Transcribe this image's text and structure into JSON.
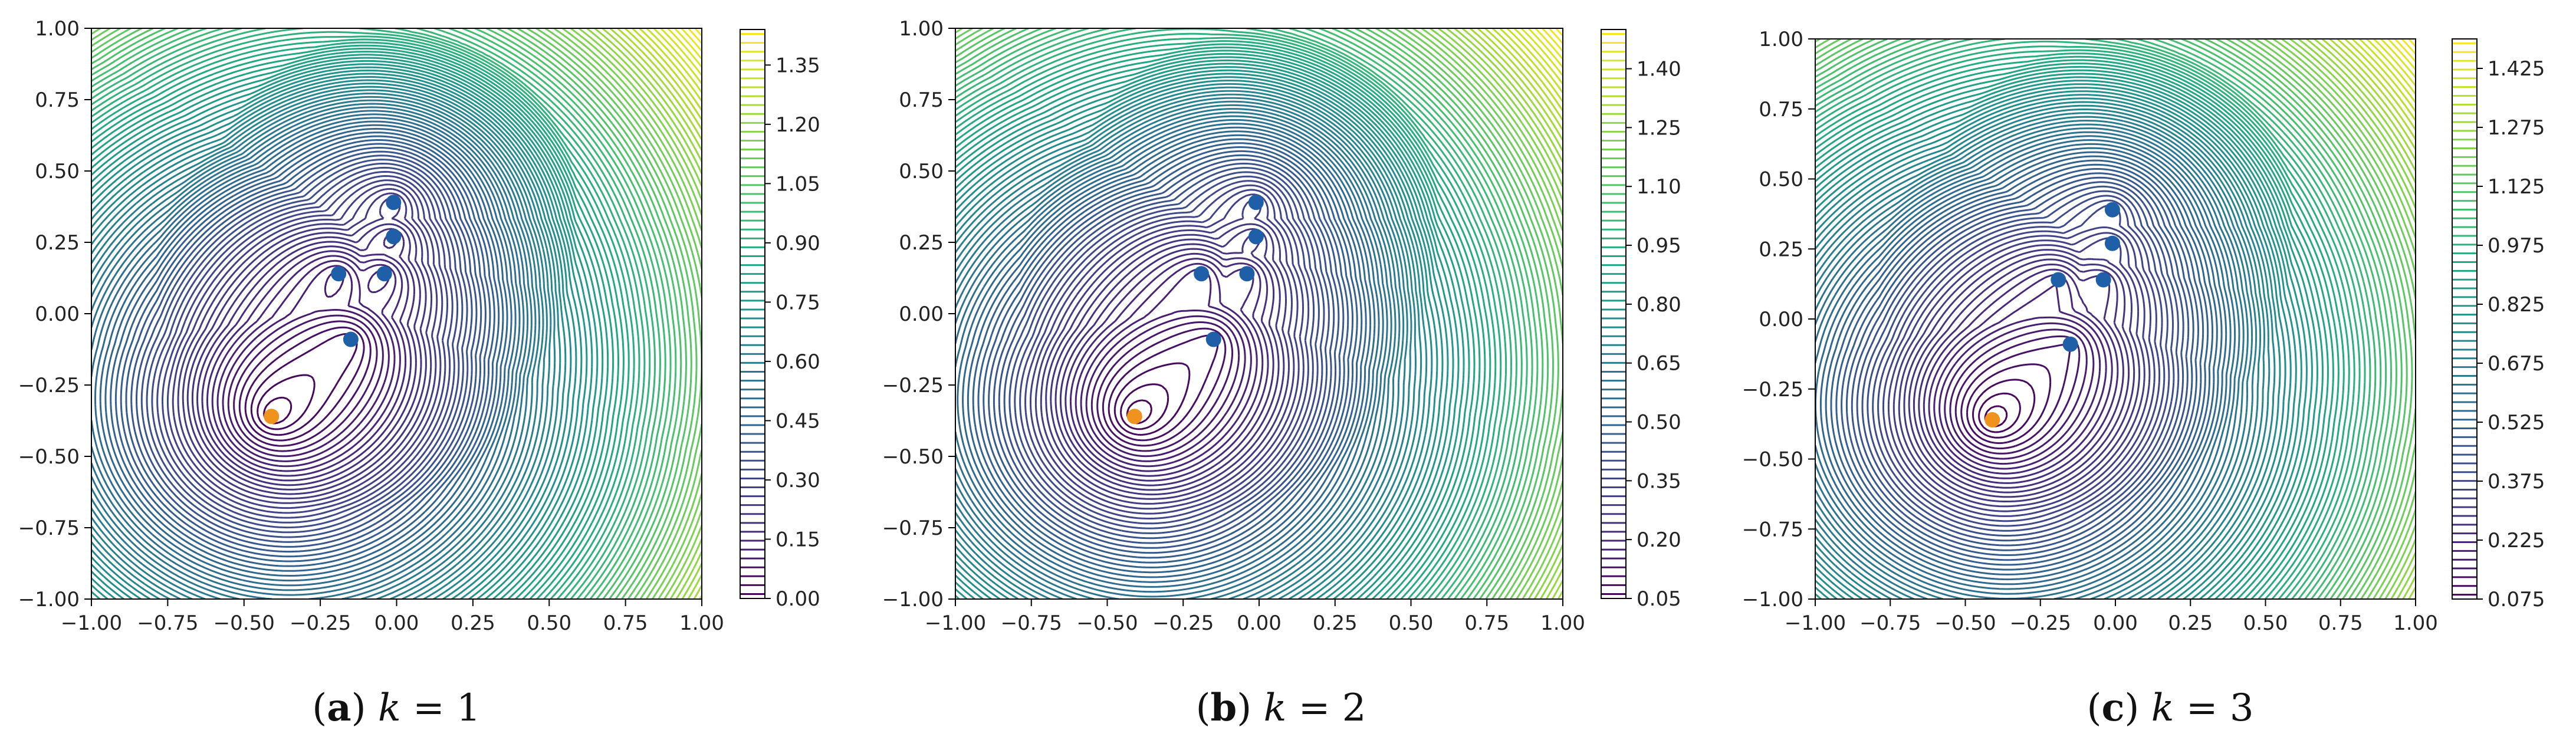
{
  "chart_data": [
    {
      "type": "contour",
      "caption": {
        "letter": "a",
        "variable": "k",
        "relation": " = ",
        "value": "1"
      },
      "x_ticks": [
        "−1.00",
        "−0.75",
        "−0.50",
        "−0.25",
        "0.00",
        "0.25",
        "0.50",
        "0.75",
        "1.00"
      ],
      "y_ticks": [
        "−1.00",
        "−0.75",
        "−0.50",
        "−0.25",
        "0.00",
        "0.25",
        "0.50",
        "0.75",
        "1.00"
      ],
      "xlim": [
        -1,
        1
      ],
      "ylim": [
        -1,
        1
      ],
      "colorbar_ticks": [
        "0.00",
        "0.15",
        "0.30",
        "0.45",
        "0.60",
        "0.75",
        "0.90",
        "1.05",
        "1.20",
        "1.35"
      ],
      "colorbar_range": [
        0.0,
        1.44
      ],
      "colormap": "viridis",
      "exponent": 1,
      "levels": 96,
      "blue_points": [
        [
          -0.15,
          -0.09
        ],
        [
          -0.19,
          0.14
        ],
        [
          -0.04,
          0.14
        ],
        [
          -0.01,
          0.27
        ],
        [
          -0.01,
          0.39
        ]
      ],
      "orange_point": [
        -0.41,
        -0.36
      ]
    },
    {
      "type": "contour",
      "caption": {
        "letter": "b",
        "variable": "k",
        "relation": " = ",
        "value": "2"
      },
      "x_ticks": [
        "−1.00",
        "−0.75",
        "−0.50",
        "−0.25",
        "0.00",
        "0.25",
        "0.50",
        "0.75",
        "1.00"
      ],
      "y_ticks": [
        "−1.00",
        "−0.75",
        "−0.50",
        "−0.25",
        "0.00",
        "0.25",
        "0.50",
        "0.75",
        "1.00"
      ],
      "xlim": [
        -1,
        1
      ],
      "ylim": [
        -1,
        1
      ],
      "colorbar_ticks": [
        "0.05",
        "0.20",
        "0.35",
        "0.50",
        "0.65",
        "0.80",
        "0.95",
        "1.10",
        "1.25",
        "1.40"
      ],
      "colorbar_range": [
        0.05,
        1.5
      ],
      "colormap": "viridis",
      "exponent": 2,
      "levels": 96,
      "blue_points": [
        [
          -0.15,
          -0.09
        ],
        [
          -0.19,
          0.14
        ],
        [
          -0.04,
          0.14
        ],
        [
          -0.01,
          0.27
        ],
        [
          -0.01,
          0.39
        ]
      ],
      "orange_point": [
        -0.41,
        -0.36
      ]
    },
    {
      "type": "contour",
      "caption": {
        "letter": "c",
        "variable": "k",
        "relation": " = ",
        "value": "3"
      },
      "x_ticks": [
        "−1.00",
        "−0.75",
        "−0.50",
        "−0.25",
        "0.00",
        "0.25",
        "0.50",
        "0.75",
        "1.00"
      ],
      "y_ticks": [
        "−1.00",
        "−0.75",
        "−0.50",
        "−0.25",
        "0.00",
        "0.25",
        "0.50",
        "0.75",
        "1.00"
      ],
      "xlim": [
        -1,
        1
      ],
      "ylim": [
        -1,
        1
      ],
      "colorbar_ticks": [
        "0.075",
        "0.225",
        "0.375",
        "0.525",
        "0.675",
        "0.825",
        "0.975",
        "1.125",
        "1.275",
        "1.425"
      ],
      "colorbar_range": [
        0.075,
        1.5
      ],
      "colormap": "viridis",
      "exponent": 3,
      "levels": 96,
      "blue_points": [
        [
          -0.15,
          -0.09
        ],
        [
          -0.19,
          0.14
        ],
        [
          -0.04,
          0.14
        ],
        [
          -0.01,
          0.27
        ],
        [
          -0.01,
          0.39
        ]
      ],
      "orange_point": [
        -0.41,
        -0.36
      ]
    }
  ],
  "colors": {
    "blue_point": "#1f5fa8",
    "orange_point": "#f0921e",
    "frame": "#000000"
  }
}
